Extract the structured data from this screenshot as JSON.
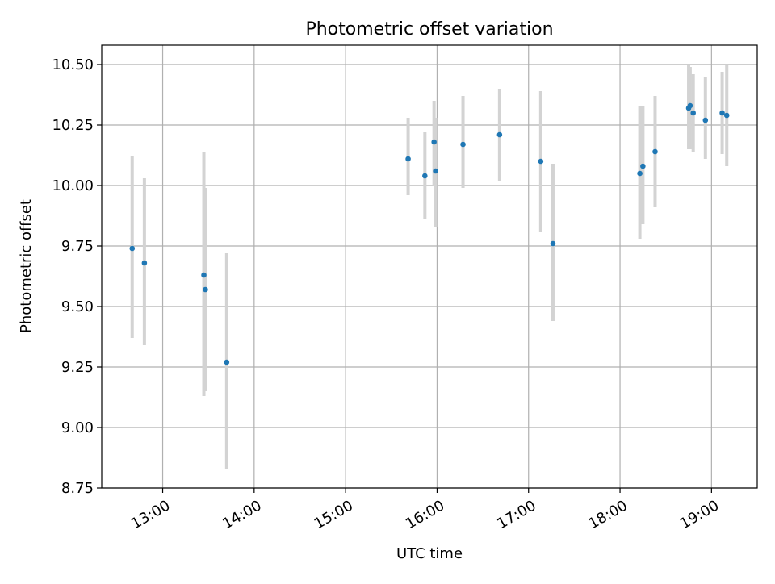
{
  "chart_data": {
    "type": "scatter",
    "title": "Photometric offset variation",
    "xlabel": "UTC time",
    "ylabel": "Photometric offset",
    "grid": true,
    "legend": "none",
    "xlim": [
      "12:20",
      "19:30"
    ],
    "ylim": [
      8.75,
      10.58
    ],
    "x_ticks": [
      "13:00",
      "14:00",
      "15:00",
      "16:00",
      "17:00",
      "18:00",
      "19:00"
    ],
    "y_ticks": [
      "8.75",
      "9.00",
      "9.25",
      "9.50",
      "9.75",
      "10.00",
      "10.25",
      "10.50"
    ],
    "marker_color": "#1f77b4",
    "errorbar_color": "#d3d3d3",
    "points": [
      {
        "x": "12:40",
        "y": 9.74,
        "ymin": 9.37,
        "ymax": 10.12
      },
      {
        "x": "12:48",
        "y": 9.68,
        "ymin": 9.34,
        "ymax": 10.03
      },
      {
        "x": "13:27",
        "y": 9.63,
        "ymin": 9.13,
        "ymax": 10.14
      },
      {
        "x": "13:28",
        "y": 9.57,
        "ymin": 9.15,
        "ymax": 9.99
      },
      {
        "x": "13:42",
        "y": 9.27,
        "ymin": 8.83,
        "ymax": 9.72
      },
      {
        "x": "15:41",
        "y": 10.11,
        "ymin": 9.96,
        "ymax": 10.28
      },
      {
        "x": "15:52",
        "y": 10.04,
        "ymin": 9.86,
        "ymax": 10.22
      },
      {
        "x": "15:58",
        "y": 10.18,
        "ymin": 10.0,
        "ymax": 10.35
      },
      {
        "x": "15:59",
        "y": 10.06,
        "ymin": 9.83,
        "ymax": 10.28
      },
      {
        "x": "16:17",
        "y": 10.17,
        "ymin": 9.99,
        "ymax": 10.37
      },
      {
        "x": "16:41",
        "y": 10.21,
        "ymin": 10.02,
        "ymax": 10.4
      },
      {
        "x": "17:08",
        "y": 10.1,
        "ymin": 9.81,
        "ymax": 10.39
      },
      {
        "x": "17:16",
        "y": 9.76,
        "ymin": 9.44,
        "ymax": 10.09
      },
      {
        "x": "18:13",
        "y": 10.05,
        "ymin": 9.78,
        "ymax": 10.33
      },
      {
        "x": "18:15",
        "y": 10.08,
        "ymin": 9.84,
        "ymax": 10.33
      },
      {
        "x": "18:23",
        "y": 10.14,
        "ymin": 9.91,
        "ymax": 10.37
      },
      {
        "x": "18:45",
        "y": 10.32,
        "ymin": 10.15,
        "ymax": 10.5
      },
      {
        "x": "18:46",
        "y": 10.33,
        "ymin": 10.15,
        "ymax": 10.49
      },
      {
        "x": "18:48",
        "y": 10.3,
        "ymin": 10.14,
        "ymax": 10.46
      },
      {
        "x": "18:56",
        "y": 10.27,
        "ymin": 10.11,
        "ymax": 10.45
      },
      {
        "x": "19:07",
        "y": 10.3,
        "ymin": 10.13,
        "ymax": 10.47
      },
      {
        "x": "19:10",
        "y": 10.29,
        "ymin": 10.08,
        "ymax": 10.5
      }
    ]
  }
}
